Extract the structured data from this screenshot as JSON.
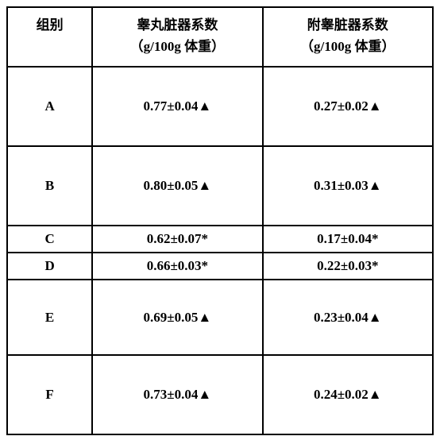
{
  "type": "table",
  "background_color": "#ffffff",
  "border_color": "#000000",
  "text_color": "#000000",
  "font_weight": "bold",
  "columns": [
    {
      "key": "group",
      "header_line1": "组别",
      "header_line2": "",
      "width_pct": 20
    },
    {
      "key": "testis",
      "header_line1": "睾丸脏器系数",
      "header_line2": "（g/100g 体重）",
      "width_pct": 40
    },
    {
      "key": "epididymis",
      "header_line1": "附睾脏器系数",
      "header_line2": "（g/100g 体重）",
      "width_pct": 40
    }
  ],
  "rows": [
    {
      "group": "A",
      "testis": "0.77±0.04▲",
      "epididymis": "0.27±0.02▲"
    },
    {
      "group": "B",
      "testis": "0.80±0.05▲",
      "epididymis": "0.31±0.03▲"
    },
    {
      "group": "C",
      "testis": "0.62±0.07*",
      "epididymis": "0.17±0.04*"
    },
    {
      "group": "D",
      "testis": "0.66±0.03*",
      "epididymis": "0.22±0.03*"
    },
    {
      "group": "E",
      "testis": "0.69±0.05▲",
      "epididymis": "0.23±0.04▲"
    },
    {
      "group": "F",
      "testis": "0.73±0.04▲",
      "epididymis": "0.24±0.02▲"
    }
  ]
}
